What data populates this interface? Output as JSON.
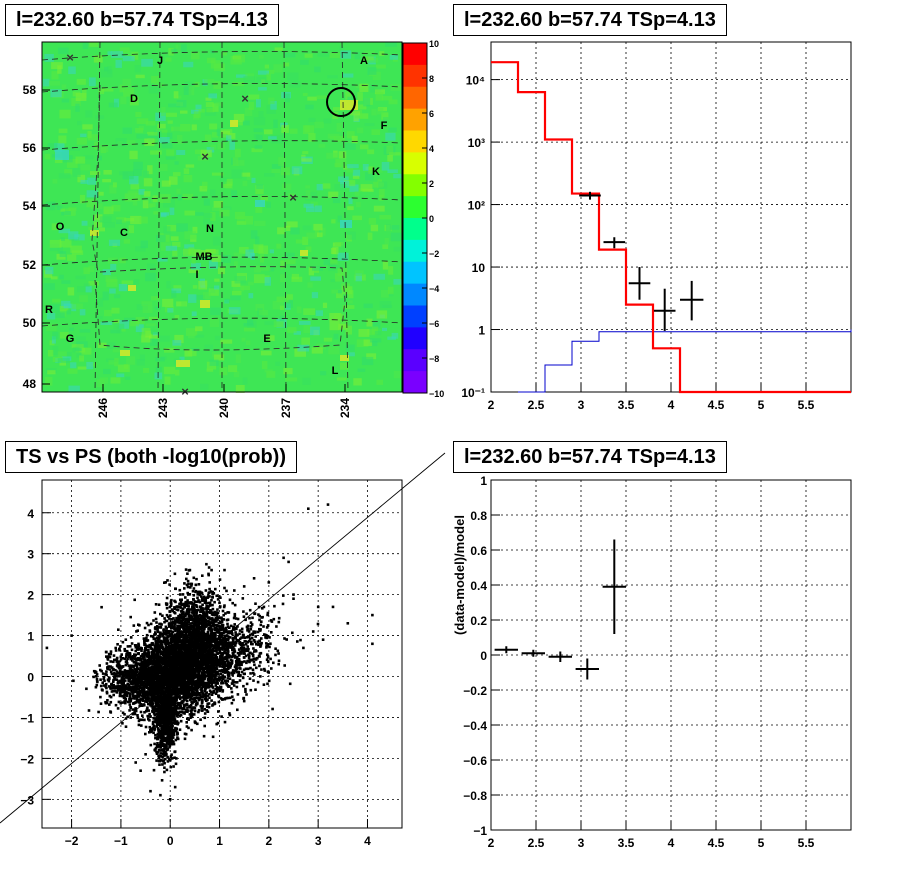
{
  "titles": {
    "map": "l=232.60 b=57.74 TSp=4.13",
    "spectrum": "l=232.60 b=57.74 TSp=4.13",
    "scatter": "TS vs PS (both -log10(prob))",
    "residual": "l=232.60 b=57.74 TSp=4.13"
  },
  "chart_data": [
    {
      "type": "heatmap",
      "title": "l=232.60 b=57.74 TSp=4.13",
      "x_tick_labels": [
        "246",
        "243",
        "240",
        "237",
        "234"
      ],
      "y_tick_labels": [
        "48",
        "50",
        "52",
        "54",
        "56",
        "58"
      ],
      "colorbar_range": [
        -10,
        10
      ],
      "colorbar_ticks": [
        "10",
        "8",
        "6",
        "4",
        "2",
        "0",
        "−2",
        "−4",
        "−6",
        "−8",
        "−10"
      ],
      "labels": [
        "A",
        "J",
        "D",
        "F",
        "K",
        "O",
        "C",
        "N",
        "MB",
        "I",
        "R",
        "G",
        "E",
        "L"
      ],
      "circle_marker": "source at upper right",
      "colors": {
        "background": "#3ee655",
        "accent_yellow": "#d6e82a",
        "accent_cyan": "#38d6c2"
      }
    },
    {
      "type": "line",
      "title": "l=232.60 b=57.74 TSp=4.13",
      "x_tick_labels": [
        "2",
        "2.5",
        "3",
        "3.5",
        "4",
        "4.5",
        "5",
        "5.5"
      ],
      "y_tick_labels": [
        "10⁻¹",
        "1",
        "10",
        "10²",
        "10³",
        "10⁴"
      ],
      "xlim": [
        2,
        6
      ],
      "ylim": [
        0.1,
        40000
      ],
      "yscale": "log",
      "grid": true,
      "series": [
        {
          "color": "#ff0000",
          "kind": "step",
          "edges": [
            2,
            2.3,
            2.6,
            2.9,
            3.2,
            3.5,
            3.8,
            4.1,
            4.4,
            6
          ],
          "values": [
            19000,
            6300,
            1100,
            150,
            19,
            2.5,
            0.5,
            0.1,
            0.1
          ]
        },
        {
          "color": "#0000cc",
          "kind": "step",
          "edges": [
            2.3,
            2.6,
            2.9,
            3.2,
            6
          ],
          "values": [
            0.1,
            0.27,
            0.65,
            0.92,
            1.0
          ]
        },
        {
          "color": "#000000",
          "kind": "errorbar",
          "x": [
            3.1,
            3.37,
            3.65,
            3.93,
            4.23
          ],
          "y": [
            140,
            25,
            5.5,
            2,
            3
          ],
          "xerr": [
            0.12,
            0.12,
            0.12,
            0.12,
            0.13
          ],
          "ylo": [
            120,
            20,
            3,
            0.95,
            1.4
          ],
          "yhi": [
            160,
            30,
            10,
            4.5,
            6
          ]
        }
      ]
    },
    {
      "type": "scatter",
      "title": "TS vs PS (both -log10(prob))",
      "x_tick_labels": [
        "−2",
        "−1",
        "0",
        "1",
        "2",
        "3",
        "4"
      ],
      "y_tick_labels": [
        "−3",
        "−2",
        "−1",
        "0",
        "1",
        "2",
        "3",
        "4"
      ],
      "xlim": [
        -2.6,
        4.7
      ],
      "ylim": [
        -3.7,
        4.8
      ],
      "grid": true,
      "diagonal_line": "y = x",
      "points": [
        [
          4.1,
          1.5
        ],
        [
          3.2,
          4.2
        ],
        [
          2.8,
          4.1
        ],
        [
          2.3,
          2.9
        ],
        [
          2.4,
          2.8
        ],
        [
          2.5,
          2.0
        ],
        [
          3.0,
          1.7
        ],
        [
          3.3,
          1.7
        ],
        [
          2.5,
          1.9
        ],
        [
          3.6,
          1.3
        ],
        [
          4.1,
          0.8
        ],
        [
          3.1,
          0.9
        ],
        [
          2.7,
          0.7
        ],
        [
          2.9,
          1.1
        ],
        [
          -2.0,
          1.0
        ],
        [
          -2.5,
          0.7
        ],
        [
          -1.3,
          0.6
        ],
        [
          -1.7,
          -0.3
        ],
        [
          -1.5,
          0.1
        ],
        [
          -0.7,
          -2.1
        ],
        [
          -0.6,
          -2.3
        ],
        [
          -0.5,
          -1.9
        ],
        [
          -0.4,
          -2.8
        ],
        [
          0.0,
          -3.0
        ],
        [
          0.1,
          -2.7
        ],
        [
          -0.2,
          -2.9
        ],
        [
          1.0,
          1.8
        ],
        [
          1.3,
          2.1
        ],
        [
          1.5,
          2.2
        ],
        [
          1.7,
          2.4
        ],
        [
          1.9,
          1.7
        ],
        [
          2.1,
          1.4
        ],
        [
          2.0,
          2.3
        ],
        [
          1.1,
          2.6
        ],
        [
          0.4,
          2.6
        ],
        [
          0.8,
          2.3
        ],
        [
          1.6,
          1.1
        ],
        [
          1.8,
          0.5
        ],
        [
          2.2,
          0.3
        ],
        [
          1.9,
          -0.2
        ],
        [
          1.5,
          -0.6
        ],
        [
          1.2,
          -0.9
        ],
        [
          -1.1,
          -0.7
        ],
        [
          -0.9,
          0.9
        ],
        [
          -0.6,
          0.7
        ],
        [
          -1.0,
          0.2
        ],
        [
          0.3,
          -1.4
        ],
        [
          0.5,
          -1.1
        ],
        [
          0.7,
          -0.8
        ],
        [
          -0.3,
          1.2
        ],
        [
          0.2,
          1.7
        ],
        [
          0.6,
          1.4
        ]
      ],
      "clusters": [
        {
          "cx": 0.0,
          "cy": 0.0,
          "sx": 0.45,
          "sy": 0.5,
          "n": 2400
        },
        {
          "cx": 0.4,
          "cy": 0.7,
          "sx": 0.35,
          "sy": 0.55,
          "n": 1300
        },
        {
          "cx": -0.1,
          "cy": -1.1,
          "sx": 0.12,
          "sy": 0.45,
          "n": 700
        },
        {
          "cx": 0.9,
          "cy": 0.5,
          "sx": 0.45,
          "sy": 0.45,
          "n": 700
        },
        {
          "cx": -0.7,
          "cy": -0.1,
          "sx": 0.4,
          "sy": 0.35,
          "n": 600
        },
        {
          "cx": 0.6,
          "cy": 1.5,
          "sx": 0.3,
          "sy": 0.45,
          "n": 350
        },
        {
          "cx": 1.6,
          "cy": 0.8,
          "sx": 0.4,
          "sy": 0.45,
          "n": 200
        }
      ]
    },
    {
      "type": "scatter",
      "title": "l=232.60 b=57.74 TSp=4.13",
      "ylabel": "(data-model)/model",
      "x_tick_labels": [
        "2",
        "2.5",
        "3",
        "3.5",
        "4",
        "4.5",
        "5",
        "5.5"
      ],
      "y_tick_labels": [
        "−1",
        "−0.8",
        "−0.6",
        "−0.4",
        "−0.2",
        "0",
        "0.2",
        "0.4",
        "0.6",
        "0.8",
        "1"
      ],
      "xlim": [
        2,
        6
      ],
      "ylim": [
        -1,
        1
      ],
      "grid": true,
      "x": [
        2.17,
        2.47,
        2.77,
        3.07,
        3.37
      ],
      "y": [
        0.03,
        0.01,
        -0.01,
        -0.08,
        0.39
      ],
      "xerr": [
        0.13,
        0.13,
        0.13,
        0.13,
        0.13
      ],
      "yerr": [
        0.02,
        0.02,
        0.03,
        0.06,
        0.27
      ]
    }
  ]
}
